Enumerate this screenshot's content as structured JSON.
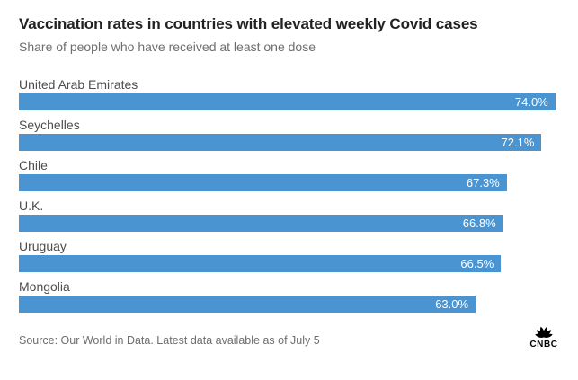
{
  "header": {
    "title": "Vaccination rates in countries with elevated weekly Covid cases",
    "subtitle": "Share of people who have received at least one dose"
  },
  "chart_data": {
    "type": "bar",
    "orientation": "horizontal",
    "title": "Vaccination rates in countries with elevated weekly Covid cases",
    "subtitle": "Share of people who have received at least one dose",
    "categories": [
      "United Arab Emirates",
      "Seychelles",
      "Chile",
      "U.K.",
      "Uruguay",
      "Mongolia"
    ],
    "values": [
      74.0,
      72.1,
      67.3,
      66.8,
      66.5,
      63.0
    ],
    "value_labels": [
      "74.0%",
      "72.1%",
      "67.3%",
      "66.8%",
      "66.5%",
      "63.0%"
    ],
    "unit": "%",
    "xlabel": "",
    "ylabel": "",
    "xlim": [
      0,
      74.4
    ],
    "grid": false,
    "legend": false,
    "bar_color": "#4a94d1",
    "value_label_color": "#ffffff"
  },
  "footer": {
    "source": "Source: Our World in Data. Latest data available as of July 5",
    "logo_text": "CNBC"
  },
  "colors": {
    "bar": "#4a94d1",
    "title": "#222222",
    "subtitle": "#6e6e6e",
    "label": "#4d4d4d",
    "source": "#6e6e6e",
    "logo": "#000000"
  }
}
